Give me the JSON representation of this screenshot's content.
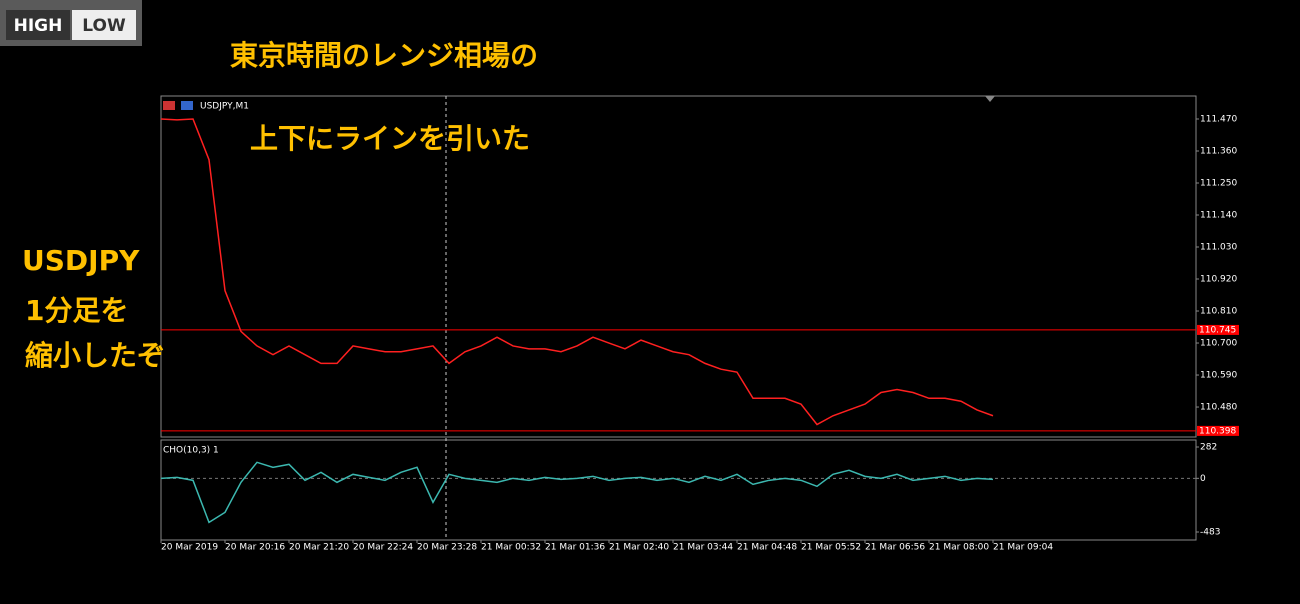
{
  "logo": {
    "high": "HIGH",
    "low": "LOW"
  },
  "annotations": [
    "東京時間のレンジ相場の",
    "上下にラインを引いた",
    "USDJPY",
    "1分足を",
    "縮小したぞ"
  ],
  "chart_data": [
    {
      "type": "line",
      "title": "USDJPY,M1",
      "color": "#ff2020",
      "values": [
        111.47,
        111.467,
        111.47,
        111.33,
        110.88,
        110.74,
        110.69,
        110.66,
        110.69,
        110.66,
        110.63,
        110.63,
        110.69,
        110.68,
        110.67,
        110.67,
        110.68,
        110.69,
        110.63,
        110.67,
        110.69,
        110.72,
        110.69,
        110.68,
        110.68,
        110.67,
        110.69,
        110.72,
        110.7,
        110.68,
        110.71,
        110.69,
        110.67,
        110.66,
        110.63,
        110.61,
        110.6,
        110.51,
        110.51,
        110.51,
        110.49,
        110.42,
        110.45,
        110.47,
        110.49,
        110.53,
        110.54,
        110.53,
        110.51,
        110.51,
        110.5,
        110.47,
        110.45
      ],
      "ylim": [
        110.377,
        111.549
      ],
      "yticks": [
        {
          "value": 111.47,
          "label": "111.470"
        },
        {
          "value": 111.36,
          "label": "111.360"
        },
        {
          "value": 111.25,
          "label": "111.250"
        },
        {
          "value": 111.14,
          "label": "111.140"
        },
        {
          "value": 111.03,
          "label": "111.030"
        },
        {
          "value": 110.92,
          "label": "110.920"
        },
        {
          "value": 110.81,
          "label": "110.810"
        },
        {
          "value": 110.7,
          "label": "110.700"
        },
        {
          "value": 110.59,
          "label": "110.590"
        },
        {
          "value": 110.48,
          "label": "110.480"
        }
      ],
      "hlines": [
        110.745,
        110.398
      ],
      "hline_color": "#ff0000"
    },
    {
      "type": "line",
      "title": "CHO(10,3) 1",
      "color": "#3cb8b0",
      "categories": [
        "20 Mar 2019",
        null,
        null,
        null,
        "20 Mar 20:16",
        null,
        null,
        null,
        "20 Mar 21:20",
        null,
        null,
        null,
        "20 Mar 22:24",
        null,
        null,
        null,
        "20 Mar 23:28",
        null,
        null,
        null,
        "21 Mar 00:32",
        null,
        null,
        null,
        "21 Mar 01:36",
        null,
        null,
        null,
        "21 Mar 02:40",
        null,
        null,
        null,
        "21 Mar 03:44",
        null,
        null,
        null,
        "21 Mar 04:48",
        null,
        null,
        null,
        "21 Mar 05:52",
        null,
        null,
        null,
        "21 Mar 06:56",
        null,
        null,
        null,
        "21 Mar 08:00",
        null,
        null,
        null,
        "21 Mar 09:04"
      ],
      "values": [
        0,
        9,
        -18,
        -396,
        -306,
        -36,
        144,
        99,
        126,
        -18,
        54,
        -36,
        36,
        9,
        -18,
        54,
        99,
        -216,
        36,
        0,
        -18,
        -36,
        0,
        -18,
        9,
        -9,
        0,
        18,
        -18,
        0,
        9,
        -18,
        0,
        -36,
        18,
        -18,
        36,
        -54,
        -18,
        0,
        -18,
        -72,
        36,
        72,
        18,
        0,
        36,
        -18,
        0,
        18,
        -18,
        0,
        -9
      ],
      "ylim": [
        -555,
        345
      ],
      "yticks": [
        282,
        0,
        -483
      ]
    }
  ]
}
